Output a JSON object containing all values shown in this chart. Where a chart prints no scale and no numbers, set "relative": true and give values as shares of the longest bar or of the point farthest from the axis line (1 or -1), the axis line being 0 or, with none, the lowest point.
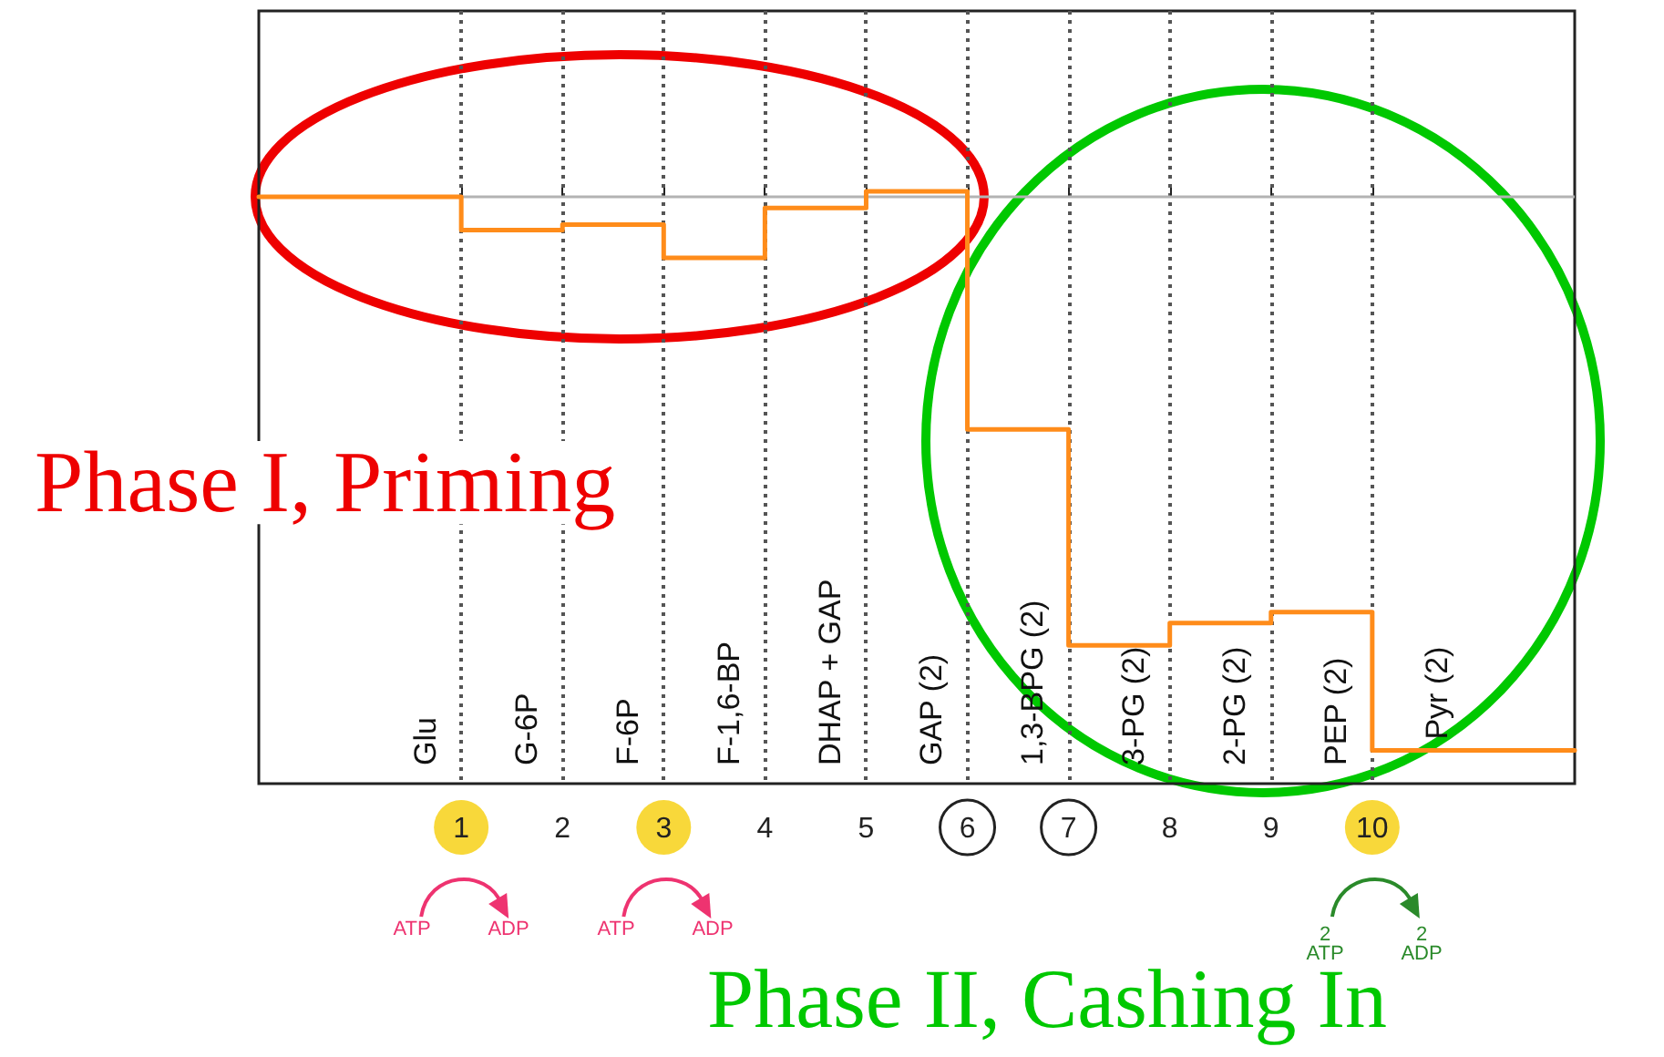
{
  "chart_data": {
    "type": "step",
    "x": [
      -1,
      1,
      2,
      3,
      4,
      5,
      6,
      7,
      8,
      9,
      10,
      12
    ],
    "series": [
      {
        "color": "#ff8c1a",
        "values": [
          0,
          -0.06,
          -0.05,
          -0.11,
          -0.02,
          0.01,
          -0.42,
          -0.81,
          -0.77,
          -0.75,
          -1,
          -1
        ]
      }
    ],
    "relative": true,
    "xlim": [
      -1,
      12
    ],
    "xticks": [
      1,
      2,
      3,
      4,
      5,
      6,
      7,
      8,
      9,
      10
    ],
    "grid": "x",
    "tick_labels": "x",
    "marker": "none",
    "line_style": "solid",
    "ref_lines": [
      {
        "axis": "y",
        "value": 0,
        "color": "#b3b3b3"
      }
    ],
    "annotations": [
      "Glu",
      "G-6P",
      "F-6P",
      "F-1,6-BP",
      "DHAP + GAP",
      "GAP (2)",
      "1,3-BPG (2)",
      "3-PG (2)",
      "2-PG (2)",
      "PEP (2)",
      "Pyr (2)",
      "Phase I, Priming",
      "Phase II, Cashing In",
      "ATP",
      "ADP",
      "ATP",
      "ADP",
      "2\nATP",
      "2\nADP"
    ]
  }
}
